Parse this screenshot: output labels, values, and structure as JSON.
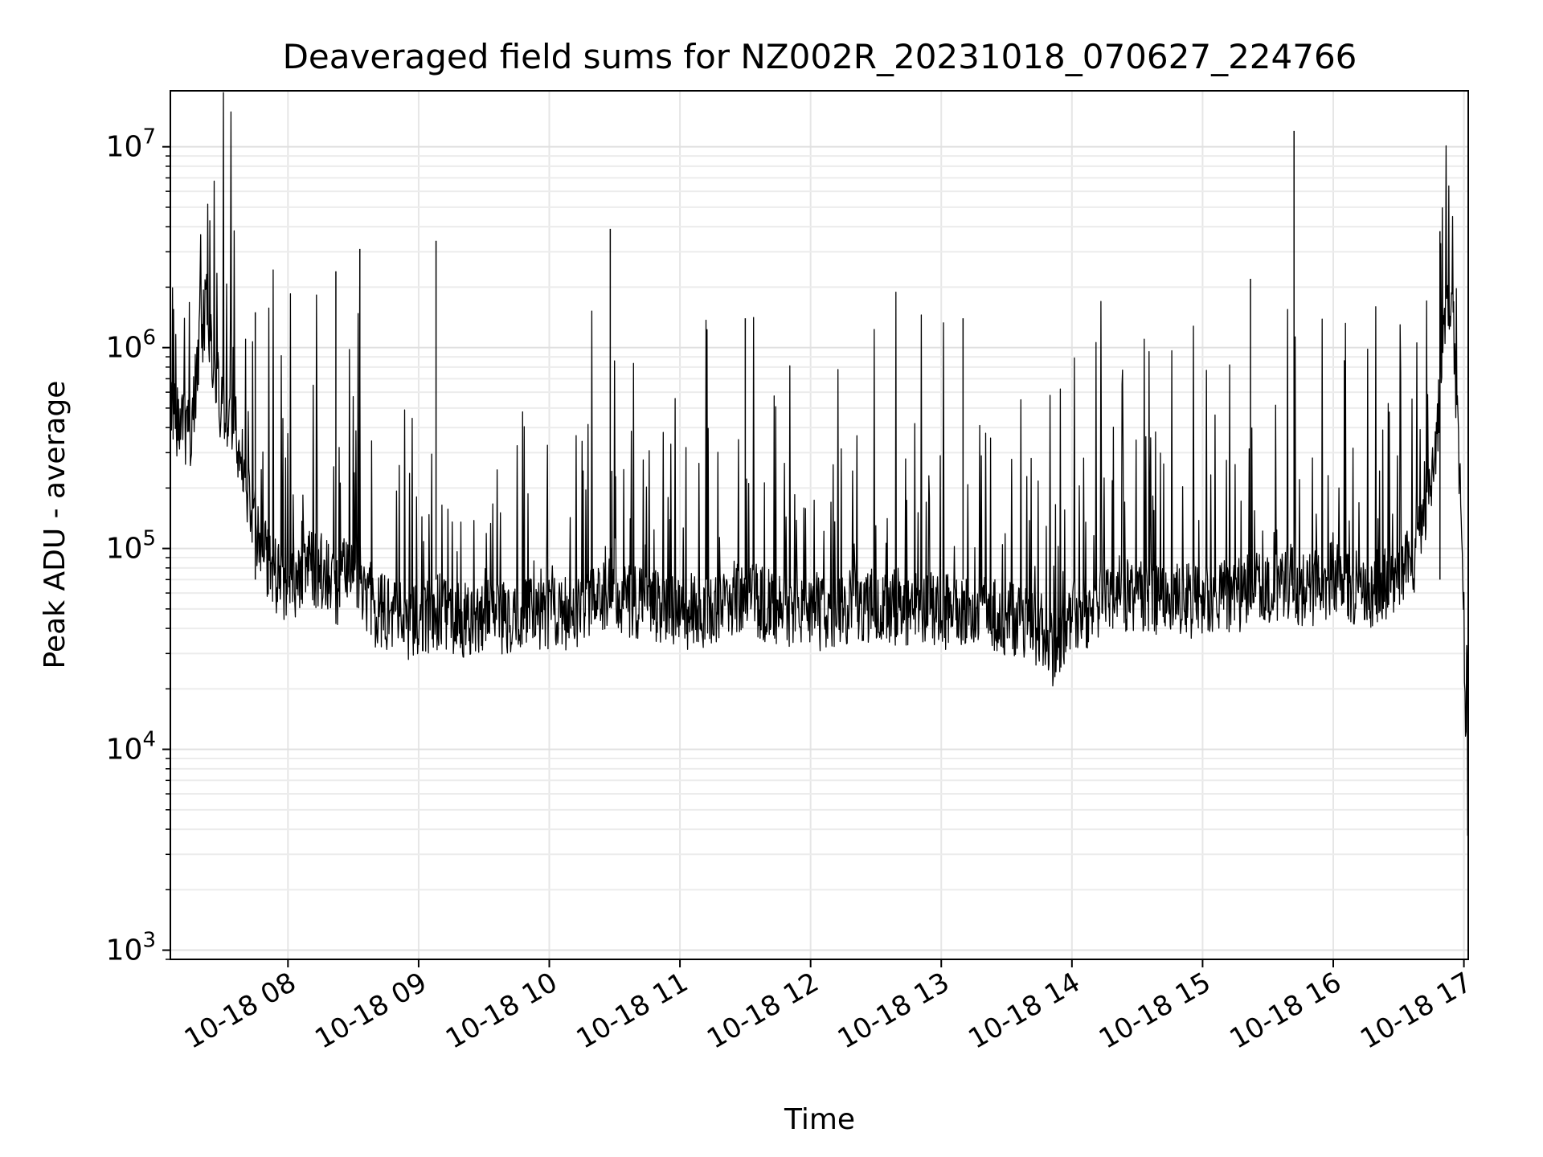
{
  "chart_data": {
    "type": "line",
    "title": "Deaveraged field sums for NZ002R_20231018_070627_224766",
    "xlabel": "Time",
    "ylabel": "Peak ADU - average",
    "yscale": "log",
    "ylim": [
      900,
      19000000
    ],
    "xlim": [
      "2023-10-18 07:06",
      "2023-10-18 17:02"
    ],
    "grid": true,
    "line_color": "#000000",
    "x_ticks": [
      "10-18 08",
      "10-18 09",
      "10-18 10",
      "10-18 11",
      "10-18 12",
      "10-18 13",
      "10-18 14",
      "10-18 15",
      "10-18 16",
      "10-18 17"
    ],
    "y_ticks": [
      {
        "base": "10",
        "exp": "3"
      },
      {
        "base": "10",
        "exp": "4"
      },
      {
        "base": "10",
        "exp": "5"
      },
      {
        "base": "10",
        "exp": "6"
      },
      {
        "base": "10",
        "exp": "7"
      }
    ],
    "series": [
      {
        "x": [
          "2023-10-18 07:06",
          "2023-10-18 07:10",
          "2023-10-18 07:15",
          "2023-10-18 07:18",
          "2023-10-18 07:20",
          "2023-10-18 07:23",
          "2023-10-18 07:25",
          "2023-10-18 07:28",
          "2023-10-18 07:30",
          "2023-10-18 07:35",
          "2023-10-18 07:40",
          "2023-10-18 07:42",
          "2023-10-18 07:45",
          "2023-10-18 07:50",
          "2023-10-18 07:52",
          "2023-10-18 07:55",
          "2023-10-18 08:00",
          "2023-10-18 08:10",
          "2023-10-18 08:20",
          "2023-10-18 08:22",
          "2023-10-18 08:30",
          "2023-10-18 08:33",
          "2023-10-18 08:40",
          "2023-10-18 08:50",
          "2023-10-18 09:00",
          "2023-10-18 09:09",
          "2023-10-18 09:15",
          "2023-10-18 09:30",
          "2023-10-18 09:45",
          "2023-10-18 10:00",
          "2023-10-18 10:15",
          "2023-10-18 10:28",
          "2023-10-18 10:30",
          "2023-10-18 10:45",
          "2023-10-18 11:00",
          "2023-10-18 11:15",
          "2023-10-18 11:30",
          "2023-10-18 11:45",
          "2023-10-18 12:00",
          "2023-10-18 12:15",
          "2023-10-18 12:30",
          "2023-10-18 12:45",
          "2023-10-18 13:00",
          "2023-10-18 13:15",
          "2023-10-18 13:30",
          "2023-10-18 13:45",
          "2023-10-18 13:52",
          "2023-10-18 14:00",
          "2023-10-18 14:15",
          "2023-10-18 14:30",
          "2023-10-18 14:45",
          "2023-10-18 15:00",
          "2023-10-18 15:15",
          "2023-10-18 15:30",
          "2023-10-18 15:42",
          "2023-10-18 15:45",
          "2023-10-18 16:00",
          "2023-10-18 16:15",
          "2023-10-18 16:30",
          "2023-10-18 16:38",
          "2023-10-18 16:45",
          "2023-10-18 16:48",
          "2023-10-18 16:50",
          "2023-10-18 16:53",
          "2023-10-18 16:55",
          "2023-10-18 16:57",
          "2023-10-18 16:59",
          "2023-10-18 17:00",
          "2023-10-18 17:01",
          "2023-10-18 17:02"
        ],
        "y": [
          450000,
          430000,
          380000,
          700000,
          1200000,
          1600000,
          900000,
          600000,
          500000,
          420000,
          250000,
          180000,
          130000,
          90000,
          80000,
          70000,
          65000,
          80000,
          75000,
          60000,
          90000,
          70000,
          50000,
          45000,
          42000,
          48000,
          44000,
          45000,
          47000,
          46000,
          50000,
          60000,
          52000,
          55000,
          48000,
          50000,
          60000,
          48000,
          47000,
          50000,
          52000,
          50000,
          48000,
          50000,
          45000,
          40000,
          30000,
          45000,
          55000,
          60000,
          55000,
          55000,
          58000,
          65000,
          70000,
          60000,
          70000,
          60000,
          75000,
          90000,
          200000,
          400000,
          900000,
          1800000,
          1500000,
          400000,
          150000,
          40000,
          8000,
          3500
        ]
      }
    ],
    "spikes": [
      {
        "x": "2023-10-18 08:22",
        "y": 2400000
      },
      {
        "x": "2023-10-18 08:33",
        "y": 3100000
      },
      {
        "x": "2023-10-18 09:08",
        "y": 3400000
      },
      {
        "x": "2023-10-18 10:28",
        "y": 3900000
      },
      {
        "x": "2023-10-18 15:42",
        "y": 12000000
      },
      {
        "x": "2023-10-18 15:22",
        "y": 2200000
      },
      {
        "x": "2023-10-18 16:49",
        "y": 3800000
      },
      {
        "x": "2023-10-18 07:45",
        "y": 1500000
      },
      {
        "x": "2023-10-18 11:30",
        "y": 1400000
      },
      {
        "x": "2023-10-18 13:10",
        "y": 1400000
      }
    ]
  }
}
